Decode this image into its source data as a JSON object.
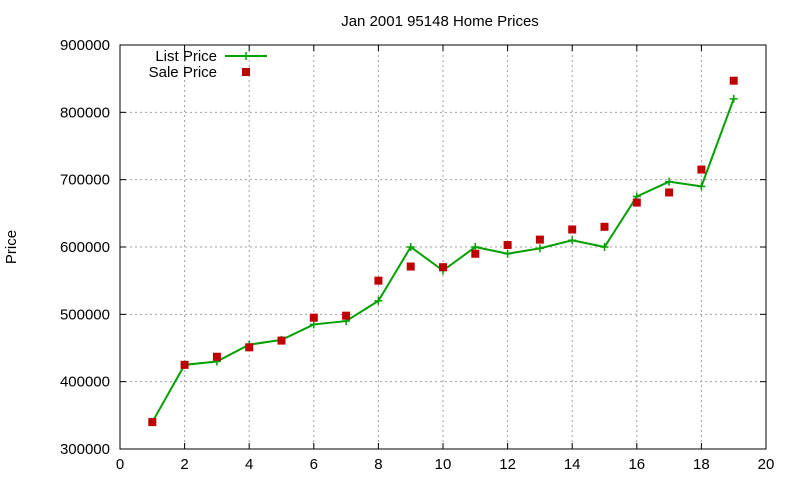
{
  "chart_data": {
    "type": "line",
    "title": "Jan 2001 95148 Home Prices",
    "xlabel": "",
    "ylabel": "Price",
    "xlim": [
      0,
      20
    ],
    "ylim": [
      300000,
      900000
    ],
    "xticks": [
      0,
      2,
      4,
      6,
      8,
      10,
      12,
      14,
      16,
      18,
      20
    ],
    "yticks": [
      300000,
      400000,
      500000,
      600000,
      700000,
      800000,
      900000
    ],
    "grid": true,
    "legend_position": "top-left",
    "series": [
      {
        "name": "List Price",
        "style": "line-cross",
        "color": "#00a000",
        "x": [
          1,
          2,
          3,
          4,
          5,
          6,
          7,
          8,
          9,
          10,
          11,
          12,
          13,
          14,
          15,
          16,
          17,
          18,
          19
        ],
        "y": [
          340000,
          425000,
          430000,
          455000,
          462000,
          485000,
          490000,
          520000,
          600000,
          565000,
          600000,
          590000,
          598000,
          610000,
          600000,
          675000,
          697000,
          690000,
          820000
        ]
      },
      {
        "name": "Sale Price",
        "style": "square",
        "color": "#c00000",
        "x": [
          1,
          2,
          3,
          4,
          5,
          6,
          7,
          8,
          9,
          10,
          11,
          12,
          13,
          14,
          15,
          16,
          17,
          18,
          19
        ],
        "y": [
          340000,
          425000,
          437000,
          451000,
          461000,
          495000,
          498000,
          550000,
          571000,
          570000,
          590000,
          603000,
          611000,
          626000,
          630000,
          666000,
          681000,
          715000,
          847000
        ]
      }
    ]
  }
}
